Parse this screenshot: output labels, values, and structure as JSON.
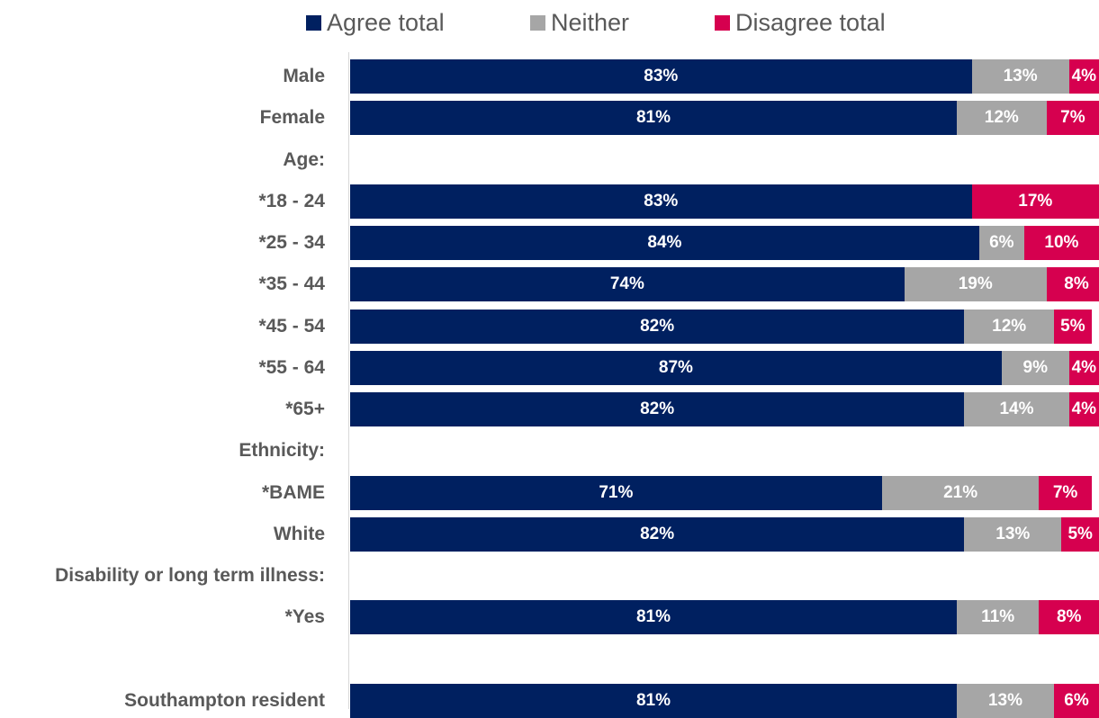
{
  "chart_data": {
    "type": "bar",
    "orientation": "horizontal",
    "stacked": true,
    "percent": true,
    "xlim": [
      0,
      100
    ],
    "legend_position": "top",
    "series": [
      {
        "name": "Agree total",
        "color": "#002060"
      },
      {
        "name": "Neither",
        "color": "#a6a6a6"
      },
      {
        "name": "Disagree total",
        "color": "#d6004f"
      }
    ],
    "rows": [
      {
        "label": "Male",
        "values": [
          83,
          13,
          4
        ],
        "labels": [
          "83%",
          "13%",
          "4%"
        ]
      },
      {
        "label": "Female",
        "values": [
          81,
          12,
          7
        ],
        "labels": [
          "81%",
          "12%",
          "7%"
        ]
      },
      {
        "label": "Age:",
        "header": true
      },
      {
        "label": "*18 - 24",
        "values": [
          83,
          0,
          17
        ],
        "labels": [
          "83%",
          "",
          "17%"
        ]
      },
      {
        "label": "*25 - 34",
        "values": [
          84,
          6,
          10
        ],
        "labels": [
          "84%",
          "6%",
          "10%"
        ]
      },
      {
        "label": "*35 - 44",
        "values": [
          74,
          19,
          8
        ],
        "labels": [
          "74%",
          "19%",
          "8%"
        ]
      },
      {
        "label": "*45 - 54",
        "values": [
          82,
          12,
          5
        ],
        "labels": [
          "82%",
          "12%",
          "5%"
        ]
      },
      {
        "label": "*55 - 64",
        "values": [
          87,
          9,
          4
        ],
        "labels": [
          "87%",
          "9%",
          "4%"
        ]
      },
      {
        "label": "*65+",
        "values": [
          82,
          14,
          4
        ],
        "labels": [
          "82%",
          "14%",
          "4%"
        ]
      },
      {
        "label": "Ethnicity:",
        "header": true
      },
      {
        "label": "*BAME",
        "values": [
          71,
          21,
          7
        ],
        "labels": [
          "71%",
          "21%",
          "7%"
        ]
      },
      {
        "label": "White",
        "values": [
          82,
          13,
          5
        ],
        "labels": [
          "82%",
          "13%",
          "5%"
        ]
      },
      {
        "label": "Disability or long term illness:",
        "header": true
      },
      {
        "label": "*Yes",
        "values": [
          81,
          11,
          8
        ],
        "labels": [
          "81%",
          "11%",
          "8%"
        ]
      },
      {
        "label": "",
        "spacer": true
      },
      {
        "label": "Southampton resident",
        "values": [
          81,
          13,
          6
        ],
        "labels": [
          "81%",
          "13%",
          "6%"
        ]
      }
    ]
  }
}
